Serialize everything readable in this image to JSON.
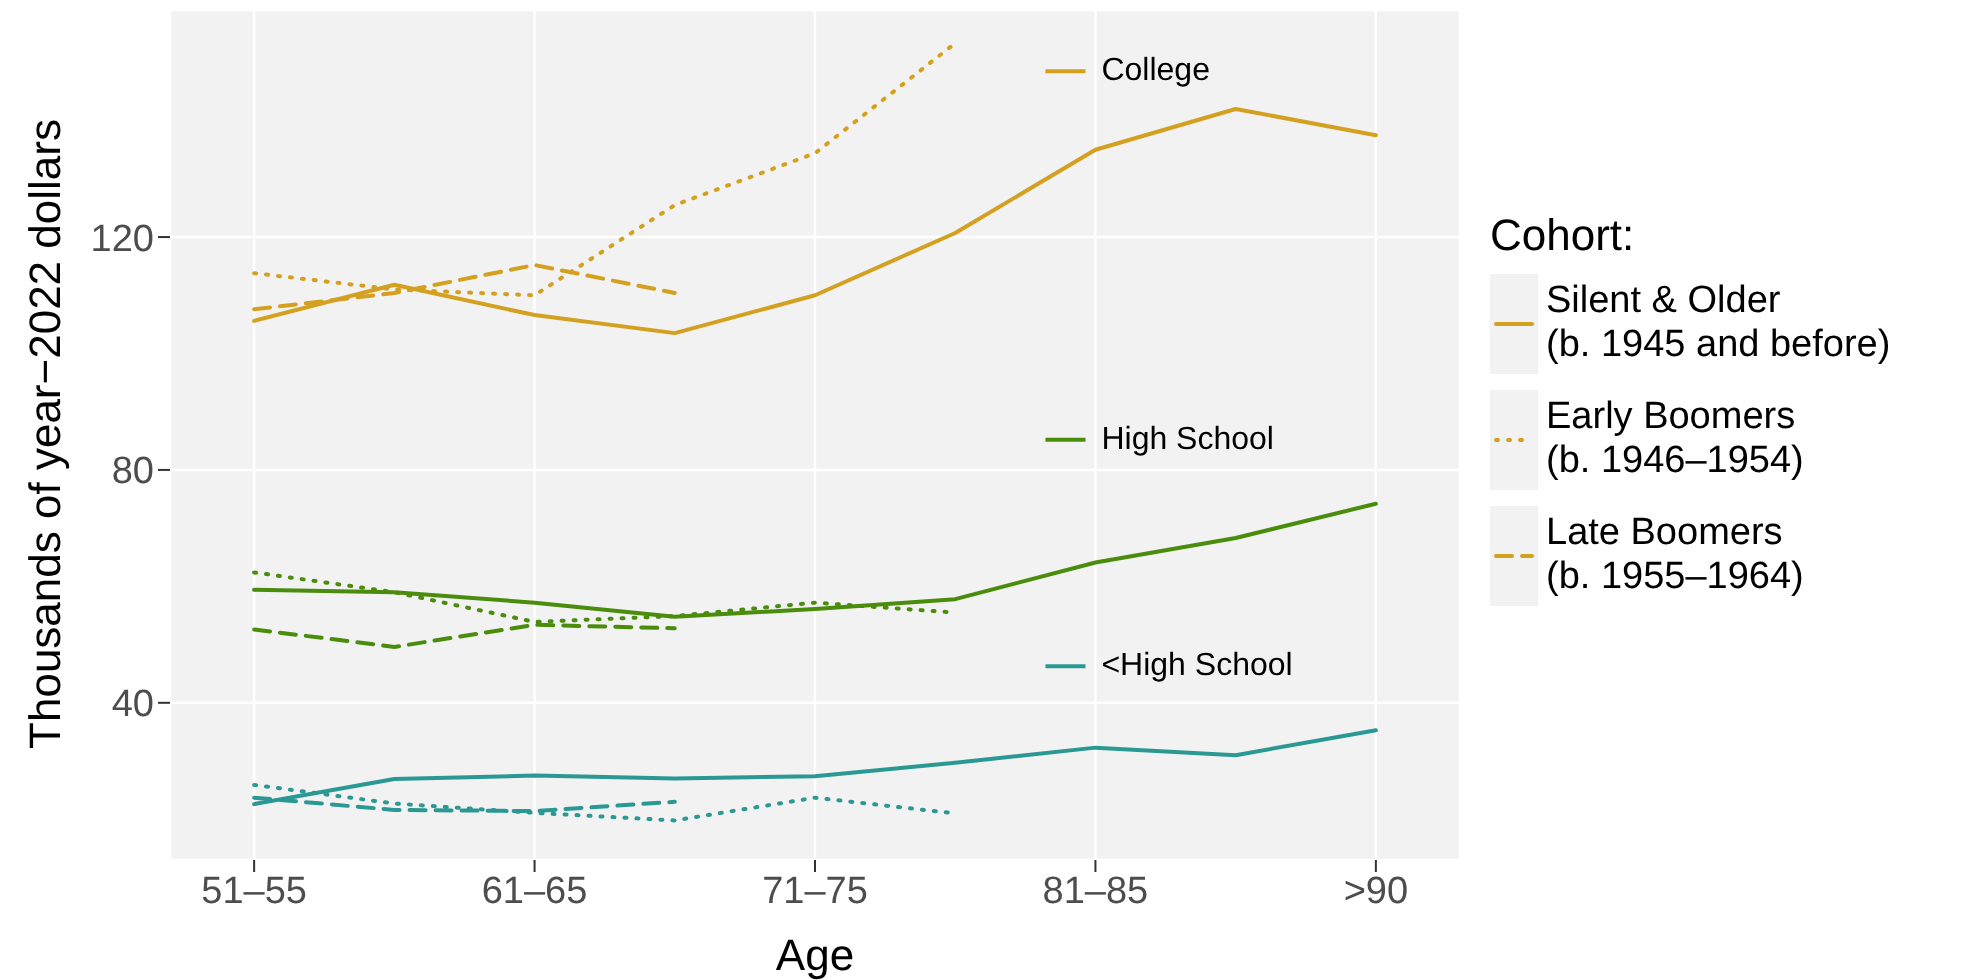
{
  "chart_data": {
    "type": "line",
    "xlabel": "Age",
    "ylabel": "Thousands of year−2022 dollars",
    "legend_title": "Cohort:",
    "categories": [
      "51–55",
      null,
      "61–65",
      null,
      "71–75",
      null,
      "81–85",
      null,
      ">90"
    ],
    "ylim": [
      13,
      159
    ],
    "yticks": [
      40,
      80,
      120
    ],
    "grid": true,
    "legend": "right",
    "series": [
      {
        "name": "Silent & Older\n(b. 1945 and before)",
        "color": "#d4a020",
        "line_style": "solid",
        "values": [
          105.6,
          111.8,
          106.6,
          103.5,
          110,
          120.7,
          135,
          142,
          137.5
        ]
      },
      {
        "name": "Early Boomers\n(b. 1946–1954)",
        "color": "#d4a020",
        "line_style": "dotted",
        "values": [
          113.8,
          111,
          110,
          125.5,
          134.4,
          153.3,
          null,
          null,
          null
        ]
      },
      {
        "name": "Late Boomers\n(b. 1955–1964)",
        "color": "#d4a020",
        "line_style": "dashed",
        "values": [
          107.6,
          110.4,
          115.2,
          110.4,
          null,
          null,
          null,
          null,
          null
        ]
      },
      {
        "color": "#4a8c0c",
        "line_style": "solid",
        "values": [
          59.4,
          59,
          57.2,
          54.8,
          56.1,
          57.8,
          64.1,
          68.3,
          74.2
        ]
      },
      {
        "color": "#4a8c0c",
        "line_style": "dotted",
        "values": [
          62.4,
          59,
          53.9,
          54.9,
          57.2,
          55.5,
          null,
          null,
          null
        ]
      },
      {
        "color": "#4a8c0c",
        "line_style": "dashed",
        "values": [
          52.6,
          49.6,
          53.4,
          52.8,
          null,
          null,
          null,
          null,
          null
        ]
      },
      {
        "color": "#2a9893",
        "line_style": "solid",
        "values": [
          22.6,
          26.9,
          27.5,
          27,
          27.4,
          29.7,
          32.3,
          31,
          35.3
        ]
      },
      {
        "color": "#2a9893",
        "line_style": "dotted",
        "values": [
          25.9,
          22.7,
          21.1,
          19.8,
          23.7,
          21,
          null,
          null,
          null
        ]
      },
      {
        "color": "#2a9893",
        "line_style": "dashed",
        "values": [
          23.7,
          21.6,
          21.4,
          23,
          null,
          null,
          null,
          null,
          null
        ]
      }
    ],
    "annotations": [
      "College",
      "High School",
      "<High School"
    ]
  }
}
